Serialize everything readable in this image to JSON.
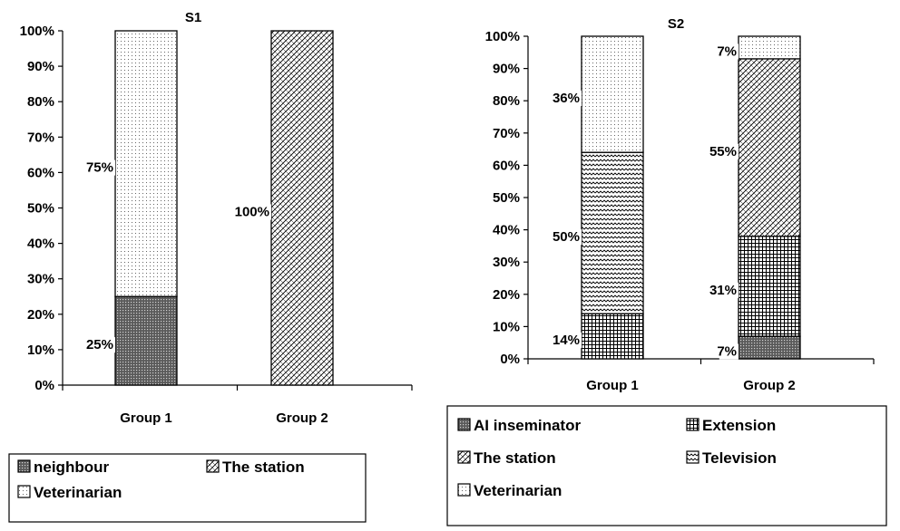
{
  "chart_data": [
    {
      "type": "bar",
      "stacked": true,
      "percent": true,
      "title": "S1",
      "categories": [
        "Group 1",
        "Group 2"
      ],
      "y_ticks": [
        "0%",
        "10%",
        "20%",
        "30%",
        "40%",
        "50%",
        "60%",
        "70%",
        "80%",
        "90%",
        "100%"
      ],
      "ylim": [
        0,
        100
      ],
      "series": [
        {
          "name": "neighbour",
          "values": [
            25,
            0
          ],
          "labels": [
            "25%",
            ""
          ],
          "pattern": "dense"
        },
        {
          "name": "The station",
          "values": [
            0,
            100
          ],
          "labels": [
            "",
            "100%"
          ],
          "pattern": "zigzag"
        },
        {
          "name": "Veterinarian",
          "values": [
            75,
            0
          ],
          "labels": [
            "75%",
            ""
          ],
          "pattern": "dots"
        }
      ],
      "legend": {
        "rows": [
          [
            "neighbour",
            "The station"
          ],
          [
            "Veterinarian"
          ]
        ],
        "placement": "bottom"
      }
    },
    {
      "type": "bar",
      "stacked": true,
      "percent": true,
      "title": "S2",
      "categories": [
        "Group 1",
        "Group 2"
      ],
      "y_ticks": [
        "0%",
        "10%",
        "20%",
        "30%",
        "40%",
        "50%",
        "60%",
        "70%",
        "80%",
        "90%",
        "100%"
      ],
      "ylim": [
        0,
        100
      ],
      "series": [
        {
          "name": "AI inseminator",
          "values": [
            0,
            7
          ],
          "labels": [
            "",
            "7%"
          ],
          "pattern": "dense"
        },
        {
          "name": "Extension",
          "values": [
            14,
            31
          ],
          "labels": [
            "14%",
            "31%"
          ],
          "pattern": "grid"
        },
        {
          "name": "The station",
          "values": [
            0,
            55
          ],
          "labels": [
            "",
            "55%"
          ],
          "pattern": "zigzag"
        },
        {
          "name": "Television",
          "values": [
            50,
            0
          ],
          "labels": [
            "50%",
            ""
          ],
          "pattern": "wave"
        },
        {
          "name": "Veterinarian",
          "values": [
            36,
            7
          ],
          "labels": [
            "36%",
            "7%"
          ],
          "pattern": "dots"
        }
      ],
      "legend": {
        "rows": [
          [
            "AI inseminator",
            "Extension"
          ],
          [
            "The station",
            "Television"
          ],
          [
            "Veterinarian"
          ]
        ],
        "placement": "bottom"
      }
    }
  ]
}
